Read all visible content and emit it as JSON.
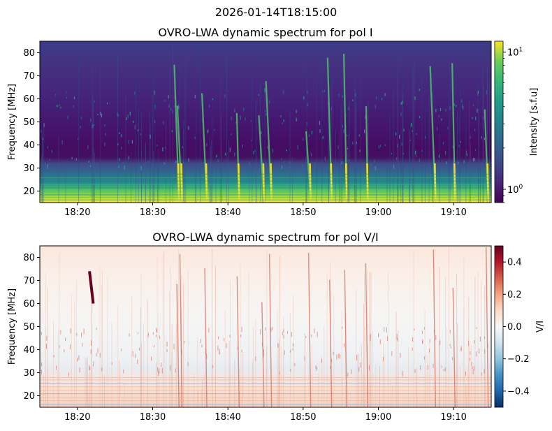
{
  "suptitle": "2026-01-14T18:15:00",
  "chart_data": [
    {
      "type": "heatmap",
      "title": "OVRO-LWA dynamic spectrum for pol I",
      "xlabel": "",
      "ylabel": "Frequency [MHz]",
      "x_range": [
        "18:15",
        "19:15"
      ],
      "y_range": [
        15,
        85
      ],
      "xticks": [
        "18:20",
        "18:30",
        "18:40",
        "18:50",
        "19:00",
        "19:10"
      ],
      "yticks": [
        20,
        30,
        40,
        50,
        60,
        70,
        80
      ],
      "colormap": "viridis",
      "colorbar": {
        "label": "Intensity [s.f.u]",
        "scale": "log",
        "range": [
          0.8,
          12
        ],
        "ticks": [
          {
            "value": 1,
            "label": "10",
            "exp": "0"
          },
          {
            "value": 10,
            "label": "10",
            "exp": "1"
          }
        ]
      },
      "bursts_minutes": [
        18.9,
        18.5,
        22.2,
        26.5,
        29.8,
        30.8,
        36.0,
        38.8,
        40.8,
        43.6,
        52.6,
        55.2,
        59.6,
        61.4,
        64.3,
        68.0
      ]
    },
    {
      "type": "heatmap",
      "title": "OVRO-LWA dynamic spectrum for pol V/I",
      "xlabel": "",
      "ylabel": "Frequency [MHz]",
      "x_range": [
        "18:15",
        "19:15"
      ],
      "y_range": [
        15,
        85
      ],
      "xticks": [
        "18:20",
        "18:30",
        "18:40",
        "18:50",
        "19:00",
        "19:10"
      ],
      "yticks": [
        20,
        30,
        40,
        50,
        60,
        70,
        80
      ],
      "colormap": "RdBu_r",
      "colorbar": {
        "label": "V/I",
        "scale": "linear",
        "range": [
          -0.5,
          0.5
        ],
        "ticks": [
          {
            "value": 0.4,
            "label": "0.4"
          },
          {
            "value": 0.2,
            "label": "0.2"
          },
          {
            "value": 0.0,
            "label": "0.0"
          },
          {
            "value": -0.2,
            "label": "−0.2"
          },
          {
            "value": -0.4,
            "label": "−0.4"
          }
        ]
      }
    }
  ]
}
